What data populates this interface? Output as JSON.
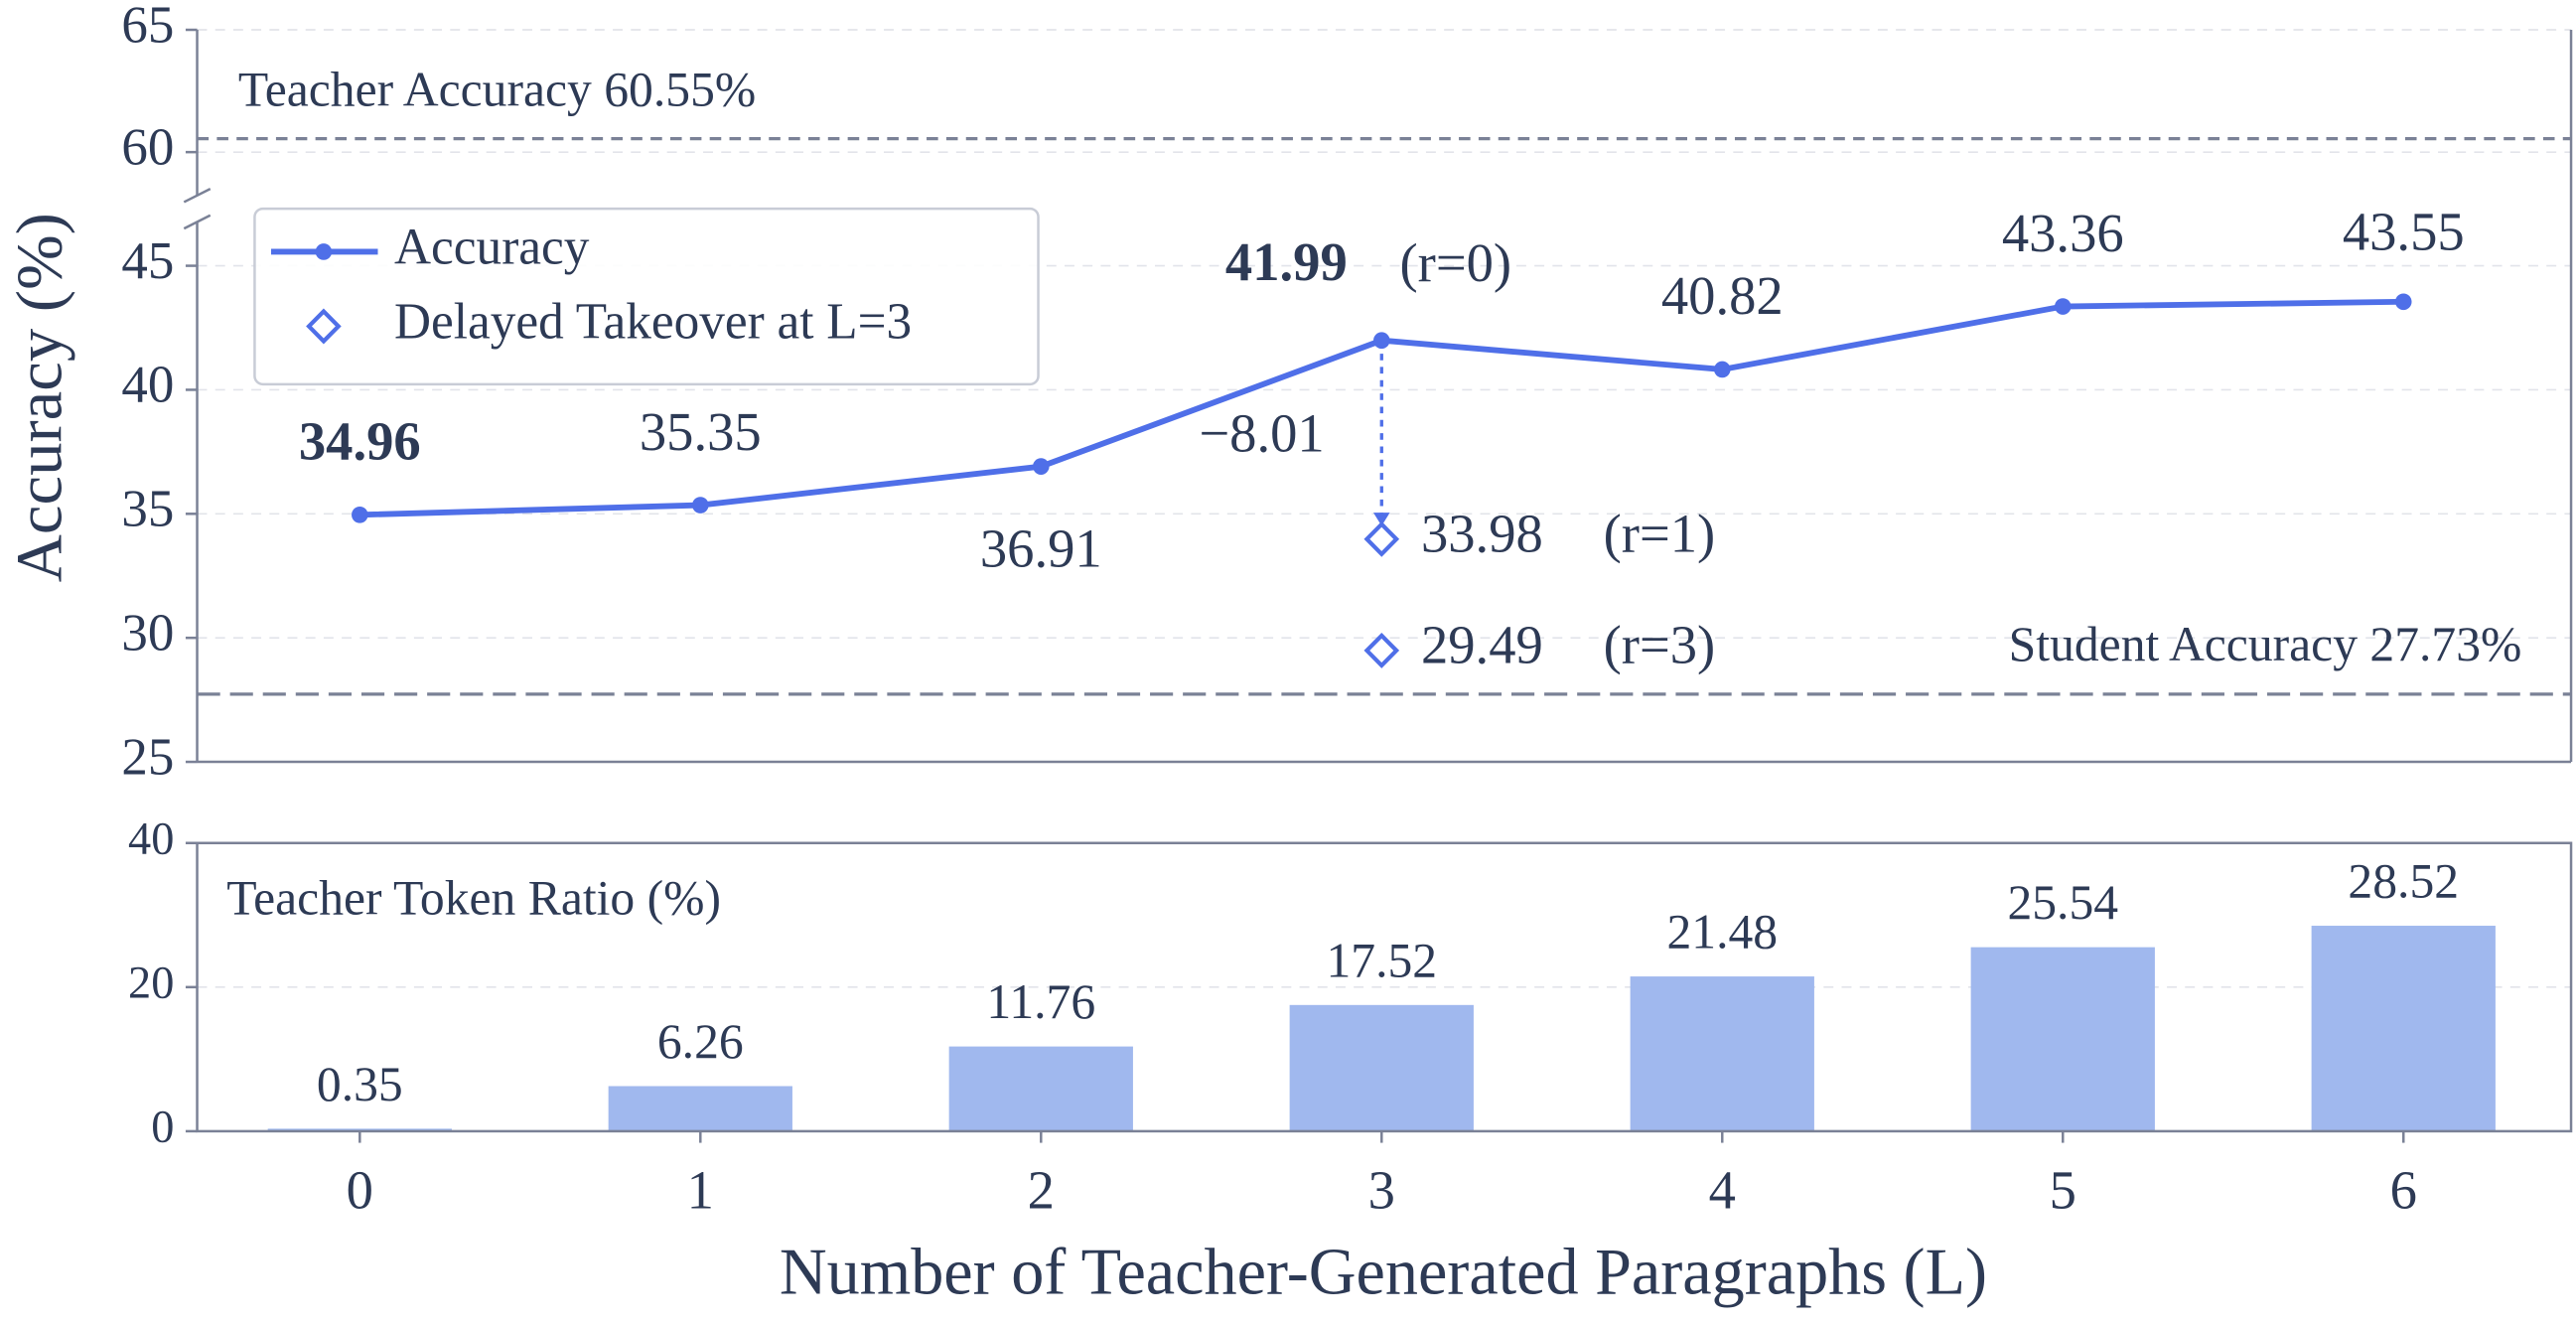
{
  "chart_data": [
    {
      "type": "line",
      "ylabel": "Accuracy (%)",
      "x": [
        0,
        1,
        2,
        3,
        4,
        5,
        6
      ],
      "series": [
        {
          "name": "Accuracy",
          "color": "#4f6fe8",
          "marker": "circle",
          "values": [
            34.96,
            35.35,
            36.91,
            41.99,
            40.82,
            43.36,
            43.55
          ]
        },
        {
          "name": "Delayed Takeover at L=3",
          "color": "#4f6fe8",
          "marker": "diamond",
          "x": [
            3,
            3
          ],
          "values": [
            33.98,
            29.49
          ]
        }
      ],
      "bold_labels": [
        0,
        3
      ],
      "ylim": [
        25,
        65
      ],
      "ybreak": [
        46.5,
        58.5
      ],
      "yticks": [
        25,
        30,
        35,
        40,
        45,
        60,
        65
      ],
      "grid": true,
      "hlines": [
        {
          "value": 60.55,
          "label": "Teacher Accuracy  60.55%",
          "color": "#7a8196"
        },
        {
          "value": 27.73,
          "label": "Student Accuracy  27.73%",
          "color": "#7a8196"
        }
      ],
      "annotations": [
        "(r=0)",
        "−8.01",
        "(r=1)",
        "(r=3)"
      ],
      "legend": "upper left"
    },
    {
      "type": "bar",
      "title": "Teacher Token Ratio (%)",
      "categories": [
        "0",
        "1",
        "2",
        "3",
        "4",
        "5",
        "6"
      ],
      "values": [
        0.35,
        6.26,
        11.76,
        17.52,
        21.48,
        25.54,
        28.52
      ],
      "color": "#a0b8ee",
      "ylim": [
        0,
        40
      ],
      "yticks": [
        0,
        20,
        40
      ],
      "grid": true,
      "xlabel": "Number of Teacher-Generated Paragraphs (L)"
    }
  ]
}
